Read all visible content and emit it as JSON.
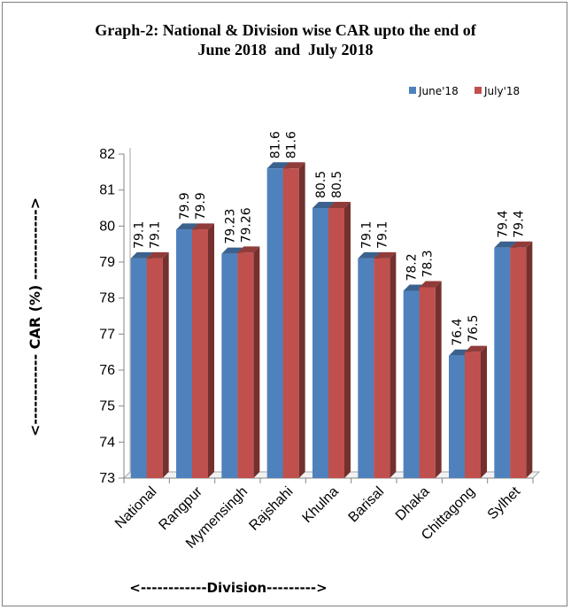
{
  "chart_data": {
    "type": "bar",
    "title_lines": [
      "Graph-2: National & Division wise CAR upto the end of",
      "June 2018  and  July 2018"
    ],
    "xlabel": "<------------Division--------->",
    "ylabel": "<------------ CAR (%) ------------>",
    "ylim": [
      73,
      82
    ],
    "yticks": [
      "73",
      "74",
      "75",
      "76",
      "77",
      "78",
      "79",
      "80",
      "81",
      "82"
    ],
    "categories": [
      "National",
      "Rangpur",
      "Mymensingh",
      "Rajshahi",
      "Khulna",
      "Barisal",
      "Dhaka",
      "Chittagong",
      "Sylhet"
    ],
    "series": [
      {
        "name": "June'18",
        "color": "#4f81bd",
        "values": [
          79.1,
          79.9,
          79.23,
          81.6,
          80.5,
          79.1,
          78.2,
          76.4,
          79.4
        ],
        "labels": [
          "79.1",
          "79.9",
          "79.23",
          "81.6",
          "80.5",
          "79.1",
          "78.2",
          "76.4",
          "79.4"
        ]
      },
      {
        "name": "July'18",
        "color": "#c0504d",
        "values": [
          79.1,
          79.9,
          79.26,
          81.6,
          80.5,
          79.1,
          78.3,
          76.5,
          79.4
        ],
        "labels": [
          "79.1",
          "79.9",
          "79.26",
          "81.6",
          "80.5",
          "79.1",
          "78.3",
          "76.5",
          "79.4"
        ]
      }
    ],
    "legend_position": "top-right",
    "grid": false,
    "style": "3d-clustered-column"
  }
}
